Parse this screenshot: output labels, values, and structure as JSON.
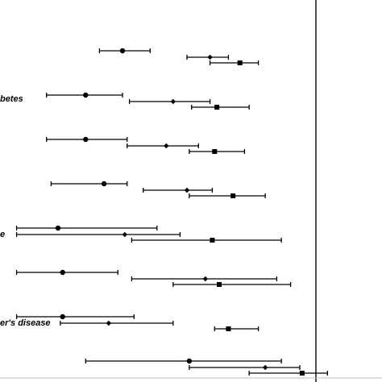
{
  "chart_data": {
    "type": "forest",
    "title": "",
    "xlabel": "",
    "ylabel": "",
    "reference_line": {
      "x": 1.0
    },
    "xlim": [
      0.0,
      1.25
    ],
    "grid": false,
    "legend": "none",
    "marker_styles": [
      "circle",
      "diamond",
      "square"
    ],
    "groups": [
      {
        "label": "",
        "rows": [
          {
            "marker": "circle",
            "estimate": 0.16,
            "ci_low": 0.06,
            "ci_high": 0.28
          },
          {
            "marker": "diamond",
            "estimate": 0.54,
            "ci_low": 0.44,
            "ci_high": 0.62
          },
          {
            "marker": "square",
            "estimate": 0.67,
            "ci_low": 0.54,
            "ci_high": 0.75
          }
        ]
      },
      {
        "label": "betes",
        "rows": [
          {
            "marker": "circle",
            "estimate": 0.0,
            "ci_low": -0.17,
            "ci_high": 0.16
          },
          {
            "marker": "diamond",
            "estimate": 0.38,
            "ci_low": 0.19,
            "ci_high": 0.54
          },
          {
            "marker": "square",
            "estimate": 0.57,
            "ci_low": 0.46,
            "ci_high": 0.71
          }
        ]
      },
      {
        "label": "",
        "rows": [
          {
            "marker": "circle",
            "estimate": 0.0,
            "ci_low": -0.17,
            "ci_high": 0.18
          },
          {
            "marker": "diamond",
            "estimate": 0.35,
            "ci_low": 0.18,
            "ci_high": 0.49
          },
          {
            "marker": "square",
            "estimate": 0.56,
            "ci_low": 0.45,
            "ci_high": 0.69
          }
        ]
      },
      {
        "label": "",
        "rows": [
          {
            "marker": "circle",
            "estimate": 0.08,
            "ci_low": -0.15,
            "ci_high": 0.18
          },
          {
            "marker": "diamond",
            "estimate": 0.44,
            "ci_low": 0.25,
            "ci_high": 0.55
          },
          {
            "marker": "square",
            "estimate": 0.64,
            "ci_low": 0.45,
            "ci_high": 0.78
          }
        ]
      },
      {
        "label": "e",
        "rows": [
          {
            "marker": "circle",
            "estimate": -0.12,
            "ci_low": -0.3,
            "ci_high": 0.31
          },
          {
            "marker": "diamond",
            "estimate": 0.17,
            "ci_low": -0.3,
            "ci_high": 0.41
          },
          {
            "marker": "square",
            "estimate": 0.55,
            "ci_low": 0.2,
            "ci_high": 0.85
          }
        ]
      },
      {
        "label": "",
        "rows": [
          {
            "marker": "circle",
            "estimate": -0.1,
            "ci_low": -0.3,
            "ci_high": 0.14
          },
          {
            "marker": "diamond",
            "estimate": 0.52,
            "ci_low": 0.2,
            "ci_high": 0.83
          },
          {
            "marker": "square",
            "estimate": 0.58,
            "ci_low": 0.38,
            "ci_high": 0.89
          }
        ]
      },
      {
        "label": "er's disease",
        "rows": [
          {
            "marker": "circle",
            "estimate": -0.1,
            "ci_low": -0.3,
            "ci_high": 0.21
          },
          {
            "marker": "diamond",
            "estimate": 0.1,
            "ci_low": -0.11,
            "ci_high": 0.38
          },
          {
            "marker": "square",
            "estimate": 0.62,
            "ci_low": 0.56,
            "ci_high": 0.75
          }
        ]
      },
      {
        "label": "",
        "rows": [
          {
            "marker": "circle",
            "estimate": 0.45,
            "ci_low": 0.0,
            "ci_high": 0.85
          },
          {
            "marker": "diamond",
            "estimate": 0.78,
            "ci_low": 0.45,
            "ci_high": 0.93
          },
          {
            "marker": "square",
            "estimate": 0.94,
            "ci_low": 0.71,
            "ci_high": 1.05
          }
        ]
      }
    ]
  }
}
